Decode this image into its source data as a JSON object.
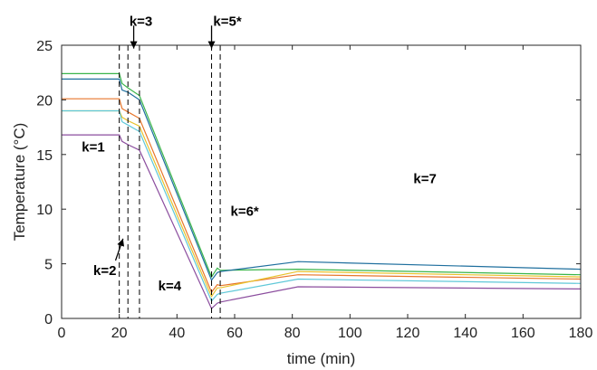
{
  "chart_data": {
    "type": "line",
    "title": "",
    "xlabel": "time (min)",
    "ylabel": "Temperature (°C)",
    "xlim": [
      0,
      180
    ],
    "ylim": [
      0,
      25
    ],
    "xticks": [
      0,
      20,
      40,
      60,
      80,
      100,
      120,
      140,
      160,
      180
    ],
    "yticks": [
      0,
      5,
      10,
      15,
      20,
      25
    ],
    "grid": false,
    "series": [
      {
        "color": "#3ab54a",
        "x": [
          0,
          20,
          21,
          23,
          27,
          52,
          54,
          55,
          82,
          180
        ],
        "y": [
          22.4,
          22.4,
          21.5,
          21.1,
          20.4,
          3.8,
          4.6,
          4.4,
          4.5,
          4.0
        ]
      },
      {
        "color": "#1f6f9e",
        "x": [
          0,
          20,
          21,
          23,
          27,
          52,
          54,
          55,
          82,
          180
        ],
        "y": [
          21.9,
          21.9,
          20.9,
          20.7,
          20.0,
          3.5,
          4.2,
          4.3,
          5.2,
          4.5
        ]
      },
      {
        "color": "#e8762b",
        "x": [
          0,
          20,
          21,
          23,
          27,
          52,
          54,
          55,
          82,
          180
        ],
        "y": [
          20.1,
          20.1,
          19.2,
          18.9,
          18.3,
          2.4,
          3.1,
          3.0,
          4.0,
          3.6
        ]
      },
      {
        "color": "#e8c22b",
        "x": [
          0,
          20,
          21,
          23,
          27,
          52,
          54,
          55,
          82,
          180
        ],
        "y": [
          19.0,
          19.0,
          18.4,
          18.1,
          17.6,
          2.0,
          2.8,
          2.8,
          4.3,
          3.8
        ]
      },
      {
        "color": "#5fc8d8",
        "x": [
          0,
          20,
          21,
          23,
          27,
          52,
          54,
          55,
          82,
          180
        ],
        "y": [
          19.0,
          19.0,
          18.0,
          17.7,
          17.1,
          1.6,
          2.2,
          2.3,
          3.6,
          3.2
        ]
      },
      {
        "color": "#8b4d9e",
        "x": [
          0,
          20,
          21,
          23,
          27,
          52,
          54,
          55,
          82,
          180
        ],
        "y": [
          16.8,
          16.8,
          16.2,
          15.9,
          15.4,
          0.9,
          1.4,
          1.5,
          2.9,
          2.7
        ]
      }
    ],
    "vlines": [
      20,
      23,
      27,
      52,
      55
    ],
    "annotations": [
      {
        "text": "k=1",
        "x": 11,
        "y": 15.7
      },
      {
        "text": "k=2",
        "x": 15,
        "y": 4.4
      },
      {
        "text": "k=3",
        "x": 27.5,
        "y": 27.2
      },
      {
        "text": "k=4",
        "x": 37.5,
        "y": 3.0
      },
      {
        "text": "k=5*",
        "x": 57.5,
        "y": 27.2
      },
      {
        "text": "k=6*",
        "x": 63.5,
        "y": 9.8
      },
      {
        "text": "k=7",
        "x": 126,
        "y": 12.8
      }
    ],
    "arrows": [
      {
        "from": [
          25,
          26.8
        ],
        "to": [
          25,
          24.7
        ]
      },
      {
        "from": [
          52,
          26.8
        ],
        "to": [
          52,
          24.7
        ]
      },
      {
        "from": [
          18.7,
          5.3
        ],
        "to": [
          21.3,
          7.3
        ]
      }
    ]
  }
}
